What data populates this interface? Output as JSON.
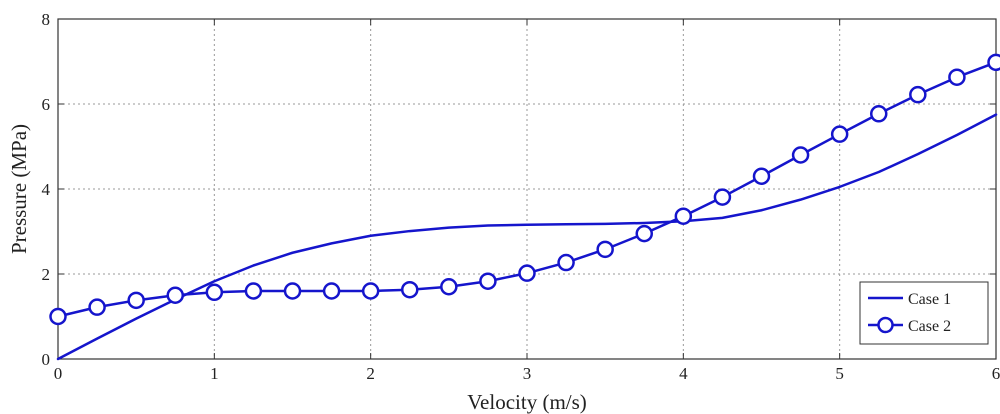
{
  "chart_data": {
    "type": "line",
    "title": "",
    "xlabel": "Velocity (m/s)",
    "ylabel": "Pressure (MPa)",
    "xlim": [
      0,
      6
    ],
    "ylim": [
      0,
      8
    ],
    "xticks": [
      0,
      1,
      2,
      3,
      4,
      5,
      6
    ],
    "yticks": [
      0,
      2,
      4,
      6,
      8
    ],
    "grid": true,
    "legend_position": "bottom-right",
    "series_color": "#1515cc",
    "series": [
      {
        "name": "Case 1",
        "marker": "none",
        "x": [
          0,
          0.25,
          0.5,
          0.75,
          1.0,
          1.25,
          1.5,
          1.75,
          2.0,
          2.25,
          2.5,
          2.75,
          3.0,
          3.25,
          3.5,
          3.75,
          4.0,
          4.25,
          4.5,
          4.75,
          5.0,
          5.25,
          5.5,
          5.75,
          6.0
        ],
        "y": [
          0,
          0.48,
          0.95,
          1.4,
          1.83,
          2.2,
          2.5,
          2.72,
          2.9,
          3.01,
          3.09,
          3.14,
          3.16,
          3.17,
          3.18,
          3.2,
          3.24,
          3.32,
          3.5,
          3.75,
          4.05,
          4.4,
          4.82,
          5.27,
          5.75
        ]
      },
      {
        "name": "Case 2",
        "marker": "circle",
        "x": [
          0,
          0.25,
          0.5,
          0.75,
          1.0,
          1.25,
          1.5,
          1.75,
          2.0,
          2.25,
          2.5,
          2.75,
          3.0,
          3.25,
          3.5,
          3.75,
          4.0,
          4.25,
          4.5,
          4.75,
          5.0,
          5.25,
          5.5,
          5.75,
          6.0
        ],
        "y": [
          1.0,
          1.22,
          1.38,
          1.5,
          1.57,
          1.6,
          1.6,
          1.6,
          1.6,
          1.63,
          1.7,
          1.83,
          2.02,
          2.27,
          2.58,
          2.95,
          3.36,
          3.81,
          4.3,
          4.8,
          5.29,
          5.77,
          6.22,
          6.63,
          6.98
        ]
      }
    ]
  }
}
